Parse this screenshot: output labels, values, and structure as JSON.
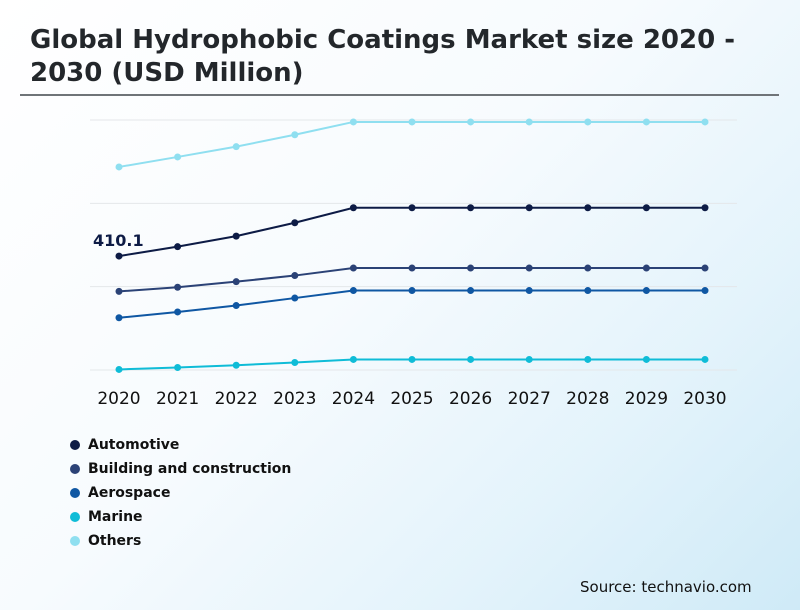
{
  "title": "Global Hydrophobic Coatings Market size 2020 - 2030 (USD Million)",
  "source": "Source: technavio.com",
  "chart_data": {
    "type": "line",
    "x": [
      "2020",
      "2021",
      "2022",
      "2023",
      "2024",
      "2025",
      "2026",
      "2027",
      "2028",
      "2029",
      "2030"
    ],
    "ylim": [
      0,
      900
    ],
    "grid": true,
    "legend_position": "bottom-left",
    "annotations": [
      {
        "series": "Automotive",
        "x": "2020",
        "label": "410.1"
      }
    ],
    "series": [
      {
        "name": "Automotive",
        "color": "#0d1b45",
        "values": [
          410.1,
          444,
          482,
          530,
          584,
          584,
          584,
          584,
          584,
          584,
          584
        ]
      },
      {
        "name": "Building and construction",
        "color": "#2b4276",
        "values": [
          283,
          298,
          318,
          340,
          367,
          367,
          367,
          367,
          367,
          367,
          367
        ]
      },
      {
        "name": "Aerospace",
        "color": "#0f57a3",
        "values": [
          188,
          209,
          232,
          259,
          286,
          286,
          286,
          286,
          286,
          286,
          286
        ]
      },
      {
        "name": "Marine",
        "color": "#0fbcd7",
        "values": [
          2,
          9,
          17,
          27,
          38,
          38,
          38,
          38,
          38,
          38,
          38
        ]
      },
      {
        "name": "Others",
        "color": "#8fdff0",
        "values": [
          731,
          767,
          804,
          847,
          893,
          893,
          893,
          893,
          893,
          893,
          893
        ]
      }
    ]
  }
}
